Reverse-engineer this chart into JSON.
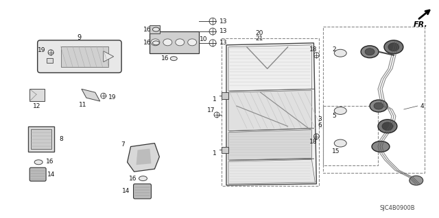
{
  "background_color": "#ffffff",
  "diagram_code": "SJC4B0900B",
  "figsize": [
    6.4,
    3.19
  ],
  "dpi": 100
}
